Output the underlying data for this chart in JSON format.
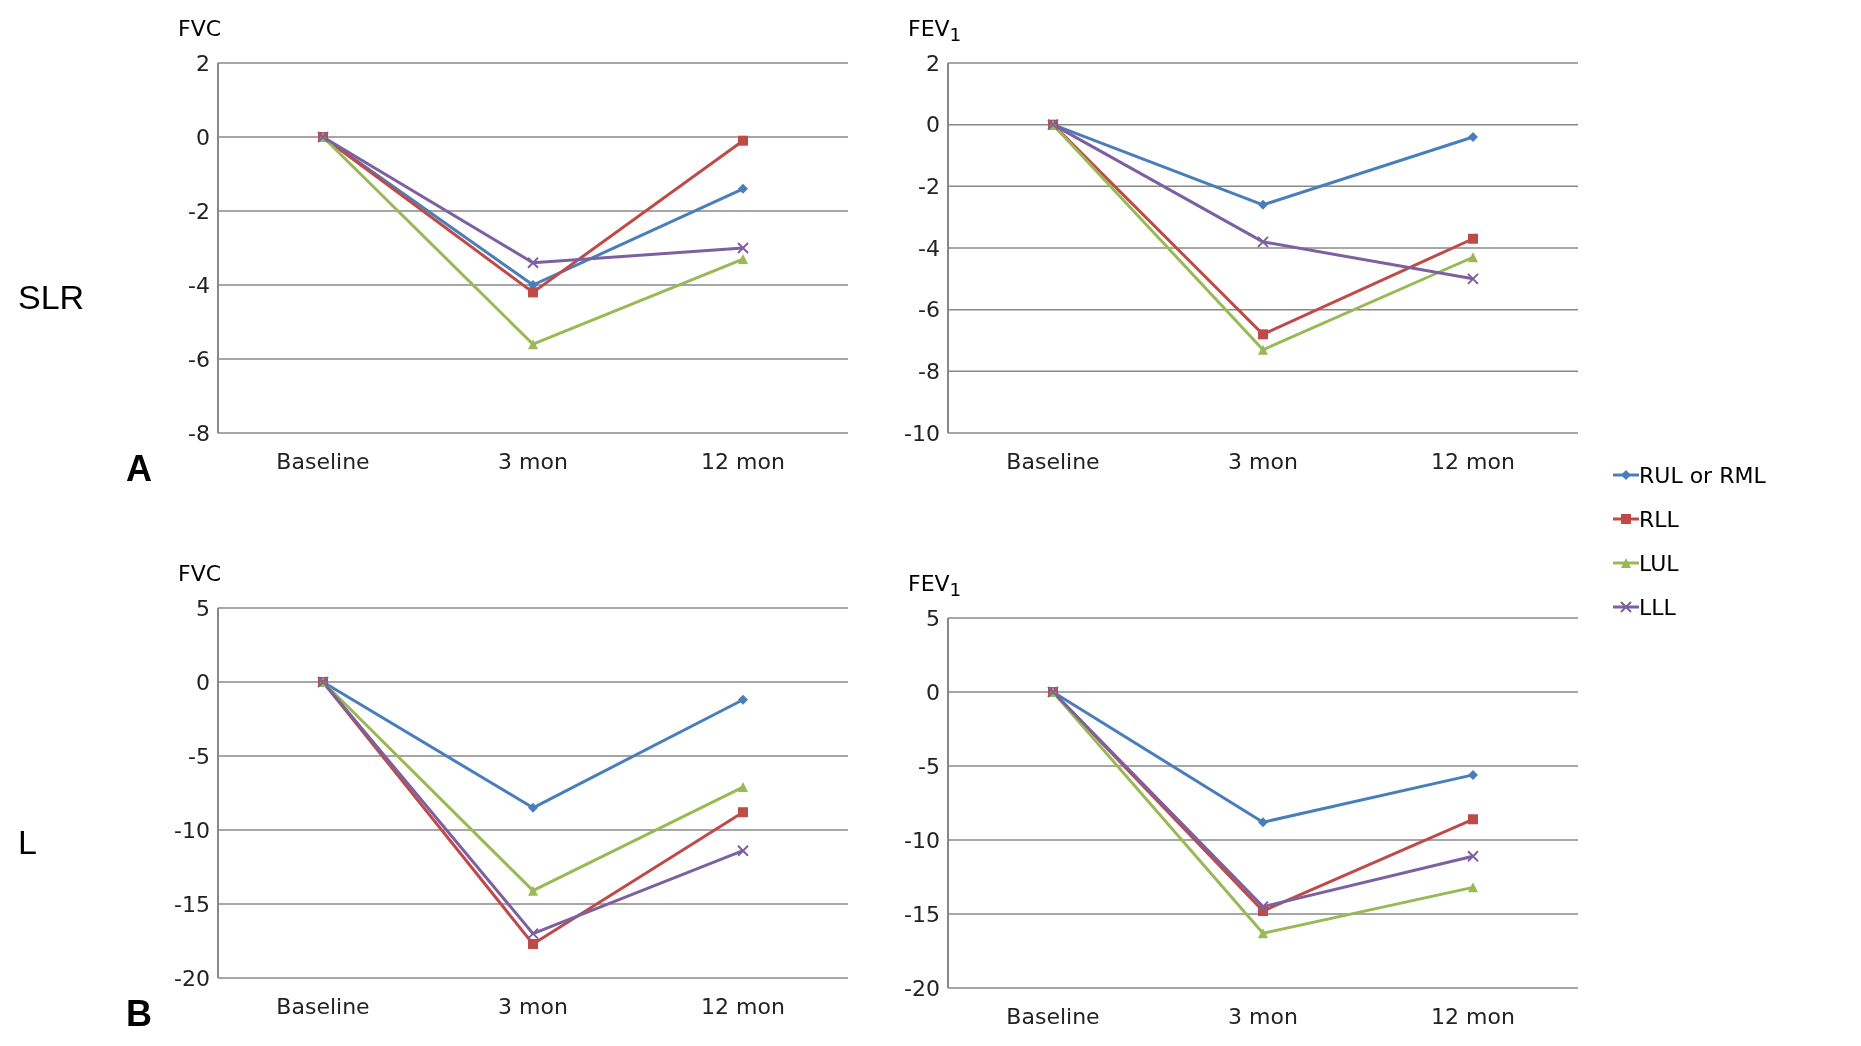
{
  "chart_data": [
    {
      "type": "line",
      "ylabel": "FVC",
      "annotations": [
        "SLR",
        "A"
      ],
      "categories": [
        "Baseline",
        "3 mon",
        "12 mon"
      ],
      "ylim": [
        -8,
        2
      ],
      "yticks": [
        -8,
        -6,
        -4,
        -2,
        0,
        2
      ],
      "grid": "y",
      "legend": false,
      "series": [
        {
          "color": "#4a7ebb",
          "marker": "diamond",
          "values": [
            0,
            -4.0,
            -1.4
          ]
        },
        {
          "color": "#be4b48",
          "marker": "square",
          "values": [
            0,
            -4.2,
            -0.1
          ]
        },
        {
          "color": "#98b954",
          "marker": "triangle",
          "values": [
            0,
            -5.6,
            -3.3
          ]
        },
        {
          "color": "#7d60a0",
          "marker": "cross",
          "values": [
            0,
            -3.4,
            -3.0
          ]
        }
      ]
    },
    {
      "type": "line",
      "ylabel": "FEV$_{1}$",
      "categories": [
        "Baseline",
        "3 mon",
        "12 mon"
      ],
      "ylim": [
        -10,
        2
      ],
      "yticks": [
        -10,
        -8,
        -6,
        -4,
        -2,
        0,
        2
      ],
      "grid": "y",
      "legend": "right",
      "series": [
        {
          "name": "RUL or RML",
          "color": "#4a7ebb",
          "marker": "diamond",
          "values": [
            0,
            -2.6,
            -0.4
          ]
        },
        {
          "name": "RLL",
          "color": "#be4b48",
          "marker": "square",
          "values": [
            0,
            -6.8,
            -3.7
          ]
        },
        {
          "name": "LUL",
          "color": "#98b954",
          "marker": "triangle",
          "values": [
            0,
            -7.3,
            -4.3
          ]
        },
        {
          "name": "LLL",
          "color": "#7d60a0",
          "marker": "cross",
          "values": [
            0,
            -3.8,
            -5.0
          ]
        }
      ]
    },
    {
      "type": "line",
      "ylabel": "FVC",
      "annotations": [
        "L",
        "B"
      ],
      "categories": [
        "Baseline",
        "3 mon",
        "12 mon"
      ],
      "ylim": [
        -20,
        5
      ],
      "yticks": [
        -20,
        -15,
        -10,
        -5,
        0,
        5
      ],
      "grid": "y",
      "legend": false,
      "series": [
        {
          "color": "#4a7ebb",
          "marker": "diamond",
          "values": [
            0,
            -8.5,
            -1.2
          ]
        },
        {
          "color": "#be4b48",
          "marker": "square",
          "values": [
            0,
            -17.7,
            -8.8
          ]
        },
        {
          "color": "#98b954",
          "marker": "triangle",
          "values": [
            0,
            -14.1,
            -7.1
          ]
        },
        {
          "color": "#7d60a0",
          "marker": "cross",
          "values": [
            0,
            -17.0,
            -11.4
          ]
        }
      ]
    },
    {
      "type": "line",
      "ylabel": "FEV$_{1}$",
      "categories": [
        "Baseline",
        "3 mon",
        "12 mon"
      ],
      "ylim": [
        -20,
        5
      ],
      "yticks": [
        -20,
        -15,
        -10,
        -5,
        0,
        5
      ],
      "grid": "y",
      "legend": false,
      "series": [
        {
          "color": "#4a7ebb",
          "marker": "diamond",
          "values": [
            0,
            -8.8,
            -5.6
          ]
        },
        {
          "color": "#be4b48",
          "marker": "square",
          "values": [
            0,
            -14.8,
            -8.6
          ]
        },
        {
          "color": "#98b954",
          "marker": "triangle",
          "values": [
            0,
            -16.3,
            -13.2
          ]
        },
        {
          "color": "#7d60a0",
          "marker": "cross",
          "values": [
            0,
            -14.5,
            -11.1
          ]
        }
      ]
    }
  ]
}
